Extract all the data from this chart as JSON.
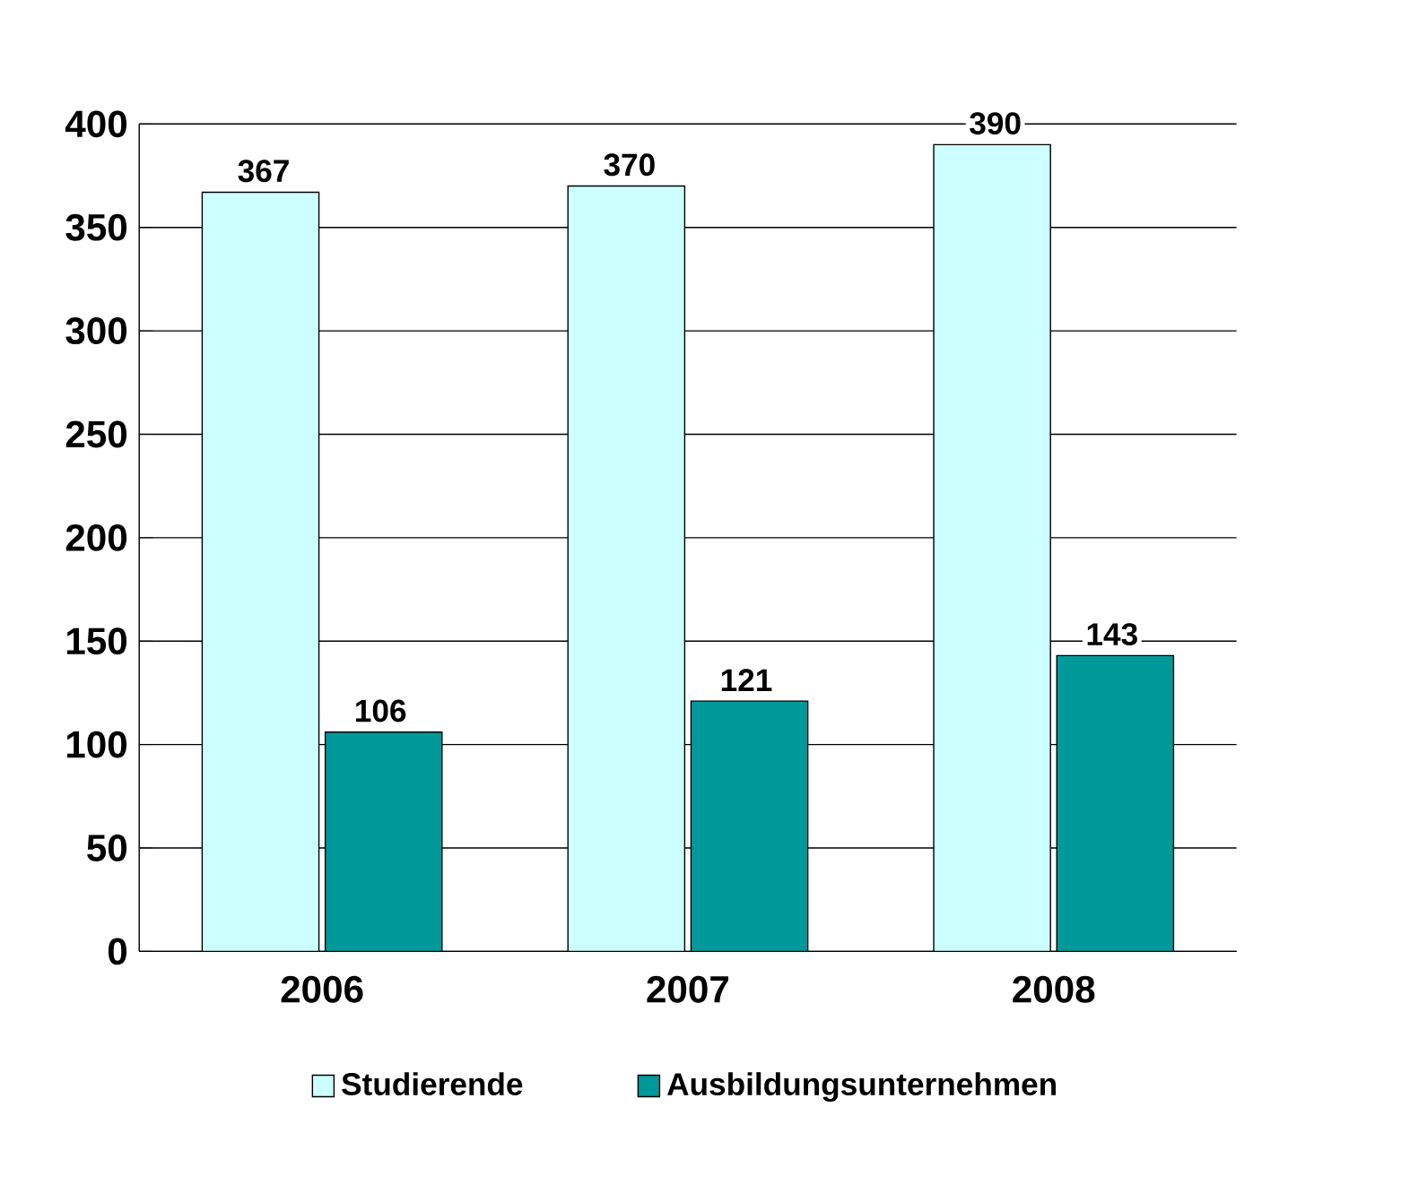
{
  "chart_data": {
    "type": "bar",
    "categories": [
      "2006",
      "2007",
      "2008"
    ],
    "series": [
      {
        "name": "Studierende",
        "color": "#ccffff",
        "values": [
          367,
          370,
          390
        ]
      },
      {
        "name": "Ausbildungsunternehmen",
        "color": "#009999",
        "values": [
          106,
          121,
          143
        ]
      }
    ],
    "ylim": [
      0,
      400
    ],
    "yticks": [
      0,
      50,
      100,
      150,
      200,
      250,
      300,
      350,
      400
    ],
    "grid": "y",
    "legend": "bottom",
    "data_labels": true
  }
}
